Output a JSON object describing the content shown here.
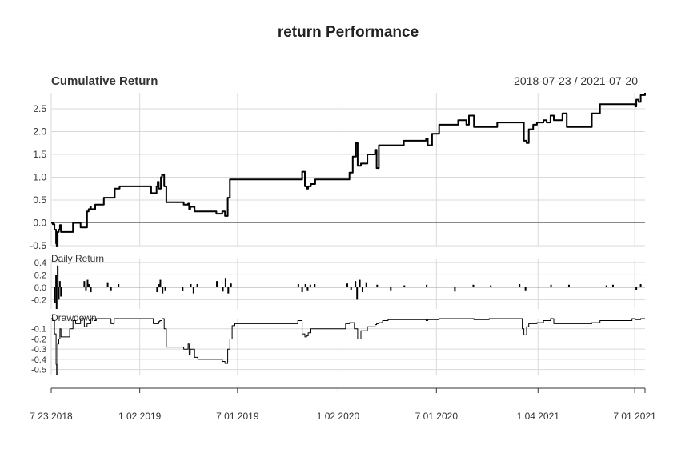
{
  "title": "return Performance",
  "date_range": "2018-07-23 / 2021-07-20",
  "chart_data": [
    {
      "type": "line",
      "title": "Cumulative Return",
      "ylim": [
        -0.5,
        2.85
      ],
      "y_ticks": [
        "2.5",
        "2.0",
        "1.5",
        "1.0",
        "0.5",
        "0.0",
        "-0.5"
      ],
      "y_tick_values": [
        2.5,
        2.0,
        1.5,
        1.0,
        0.5,
        0.0,
        -0.5
      ],
      "grid": true,
      "x": [
        "2018-07-23",
        "2018-07-26",
        "2018-07-29",
        "2018-08-01",
        "2018-08-02",
        "2018-08-04",
        "2018-08-06",
        "2018-08-08",
        "2018-08-10",
        "2018-08-14",
        "2018-08-18",
        "2018-08-22",
        "2018-09-01",
        "2018-09-15",
        "2018-09-27",
        "2018-09-30",
        "2018-10-03",
        "2018-10-04",
        "2018-10-06",
        "2018-10-12",
        "2018-10-18",
        "2018-10-28",
        "2018-11-04",
        "2018-11-17",
        "2018-11-26",
        "2018-12-02",
        "2018-12-16",
        "2019-01-06",
        "2019-01-23",
        "2019-02-02",
        "2019-02-04",
        "2019-02-06",
        "2019-02-10",
        "2019-02-12",
        "2019-02-16",
        "2019-02-20",
        "2019-03-19",
        "2019-03-24",
        "2019-04-01",
        "2019-04-03",
        "2019-04-05",
        "2019-04-13",
        "2019-04-19",
        "2019-05-03",
        "2019-05-23",
        "2019-06-03",
        "2019-06-08",
        "2019-06-13",
        "2019-06-17",
        "2019-06-21",
        "2019-07-11",
        "2019-08-16",
        "2019-09-24",
        "2019-10-20",
        "2019-10-28",
        "2019-11-02",
        "2019-11-05",
        "2019-11-08",
        "2019-11-13",
        "2019-11-21",
        "2019-12-01",
        "2019-12-17",
        "2020-01-06",
        "2020-01-16",
        "2020-01-23",
        "2020-01-29",
        "2020-02-04",
        "2020-02-07",
        "2020-02-13",
        "2020-02-25",
        "2020-03-10",
        "2020-03-13",
        "2020-03-17",
        "2020-03-24",
        "2020-04-03",
        "2020-05-02",
        "2020-05-18",
        "2020-06-12",
        "2020-06-15",
        "2020-06-23",
        "2020-07-06",
        "2020-08-03",
        "2020-08-10",
        "2020-08-25",
        "2020-08-30",
        "2020-09-08",
        "2020-10-06",
        "2020-10-21",
        "2020-11-15",
        "2020-12-06",
        "2020-12-09",
        "2020-12-14",
        "2020-12-18",
        "2020-12-26",
        "2021-01-02",
        "2021-01-14",
        "2021-01-20",
        "2021-01-27",
        "2021-02-02",
        "2021-02-18",
        "2021-02-26",
        "2021-03-20",
        "2021-03-30",
        "2021-04-13",
        "2021-04-28",
        "2021-05-08",
        "2021-06-01",
        "2021-06-26",
        "2021-07-02",
        "2021-07-04",
        "2021-07-08",
        "2021-07-12",
        "2021-07-20"
      ],
      "values": [
        0.0,
        -0.03,
        -0.15,
        -0.45,
        -0.5,
        -0.2,
        -0.15,
        -0.05,
        -0.2,
        -0.2,
        -0.2,
        -0.2,
        0.0,
        -0.1,
        0.25,
        0.3,
        0.35,
        0.3,
        0.3,
        0.4,
        0.4,
        0.55,
        0.55,
        0.75,
        0.8,
        0.8,
        0.8,
        0.8,
        0.65,
        0.8,
        0.9,
        0.75,
        1.0,
        1.05,
        0.8,
        0.45,
        0.45,
        0.4,
        0.42,
        0.3,
        0.35,
        0.25,
        0.25,
        0.25,
        0.2,
        0.25,
        0.15,
        0.55,
        0.95,
        0.95,
        0.95,
        0.95,
        0.95,
        0.95,
        1.12,
        0.8,
        0.75,
        0.8,
        0.85,
        0.95,
        0.95,
        0.95,
        0.95,
        0.95,
        1.1,
        1.45,
        1.75,
        1.25,
        1.3,
        1.5,
        1.6,
        1.2,
        1.7,
        1.7,
        1.7,
        1.8,
        1.8,
        1.85,
        1.7,
        1.95,
        2.15,
        2.15,
        2.25,
        2.15,
        2.35,
        2.1,
        2.1,
        2.2,
        2.2,
        2.2,
        1.8,
        1.75,
        2.05,
        2.15,
        2.2,
        2.25,
        2.2,
        2.35,
        2.25,
        2.4,
        2.1,
        2.1,
        2.1,
        2.4,
        2.6,
        2.6,
        2.6,
        2.6,
        2.55,
        2.7,
        2.65,
        2.8,
        2.85
      ]
    },
    {
      "type": "bar",
      "title": "Daily Return",
      "ylim": [
        -0.35,
        0.45
      ],
      "y_ticks": [
        "0.4",
        "0.2",
        "0.0",
        "-0.2"
      ],
      "y_tick_values": [
        0.4,
        0.2,
        0.0,
        -0.2
      ],
      "grid": true,
      "x": [
        "2018-07-30",
        "2018-08-01",
        "2018-08-02",
        "2018-08-04",
        "2018-08-06",
        "2018-08-08",
        "2018-08-10",
        "2018-09-22",
        "2018-09-25",
        "2018-09-28",
        "2018-10-01",
        "2018-10-04",
        "2018-11-04",
        "2018-11-10",
        "2018-11-24",
        "2019-02-03",
        "2019-02-06",
        "2019-02-09",
        "2019-02-13",
        "2019-02-18",
        "2019-03-22",
        "2019-04-06",
        "2019-04-11",
        "2019-04-18",
        "2019-05-24",
        "2019-06-04",
        "2019-06-09",
        "2019-06-14",
        "2019-06-19",
        "2019-10-21",
        "2019-10-28",
        "2019-11-03",
        "2019-11-07",
        "2019-11-12",
        "2019-11-20",
        "2020-01-19",
        "2020-01-26",
        "2020-02-03",
        "2020-02-06",
        "2020-02-11",
        "2020-02-16",
        "2020-02-23",
        "2020-03-14",
        "2020-04-08",
        "2020-05-03",
        "2020-06-13",
        "2020-08-04",
        "2020-09-07",
        "2020-10-09",
        "2020-12-01",
        "2020-12-12",
        "2021-01-28",
        "2021-03-02",
        "2021-05-10",
        "2021-05-22",
        "2021-07-04",
        "2021-07-12"
      ],
      "values": [
        -0.25,
        0.2,
        -0.35,
        0.35,
        -0.2,
        0.1,
        -0.15,
        0.1,
        -0.05,
        0.12,
        0.05,
        -0.08,
        0.08,
        -0.05,
        0.05,
        -0.08,
        0.05,
        0.12,
        -0.1,
        -0.05,
        -0.06,
        0.05,
        -0.1,
        0.05,
        0.1,
        -0.07,
        0.15,
        -0.1,
        0.06,
        0.05,
        -0.08,
        0.05,
        -0.05,
        0.04,
        0.05,
        0.06,
        -0.04,
        0.1,
        -0.2,
        0.12,
        -0.08,
        0.08,
        0.04,
        -0.05,
        0.03,
        0.04,
        -0.07,
        0.04,
        0.03,
        0.05,
        -0.05,
        0.04,
        0.04,
        0.03,
        0.04,
        -0.04,
        0.05
      ]
    },
    {
      "type": "area",
      "title": "Drawdown",
      "ylim": [
        -0.55,
        0.0
      ],
      "y_ticks": [
        "-0.1",
        "-0.2",
        "-0.3",
        "-0.4",
        "-0.5"
      ],
      "y_tick_values": [
        -0.1,
        -0.2,
        -0.3,
        -0.4,
        -0.5
      ],
      "grid": true,
      "x": [
        "2018-07-23",
        "2018-07-26",
        "2018-07-29",
        "2018-08-01",
        "2018-08-02",
        "2018-08-04",
        "2018-08-06",
        "2018-08-08",
        "2018-08-10",
        "2018-08-22",
        "2018-08-26",
        "2018-09-01",
        "2018-09-06",
        "2018-09-15",
        "2018-09-22",
        "2018-09-27",
        "2018-10-04",
        "2018-10-10",
        "2018-10-14",
        "2018-11-04",
        "2018-11-10",
        "2018-11-16",
        "2019-01-23",
        "2019-01-27",
        "2019-02-06",
        "2019-02-08",
        "2019-02-12",
        "2019-02-16",
        "2019-02-20",
        "2019-03-19",
        "2019-03-24",
        "2019-04-01",
        "2019-04-03",
        "2019-04-05",
        "2019-04-13",
        "2019-04-19",
        "2019-05-23",
        "2019-06-03",
        "2019-06-08",
        "2019-06-13",
        "2019-06-17",
        "2019-06-21",
        "2019-06-26",
        "2019-07-11",
        "2019-10-20",
        "2019-10-28",
        "2019-11-02",
        "2019-11-05",
        "2019-11-08",
        "2019-11-13",
        "2019-11-21",
        "2019-12-01",
        "2020-01-16",
        "2020-01-23",
        "2020-02-01",
        "2020-02-07",
        "2020-02-13",
        "2020-02-25",
        "2020-03-10",
        "2020-03-13",
        "2020-03-17",
        "2020-03-24",
        "2020-04-03",
        "2020-05-18",
        "2020-06-12",
        "2020-06-15",
        "2020-07-06",
        "2020-09-08",
        "2020-10-06",
        "2020-11-15",
        "2020-12-06",
        "2020-12-09",
        "2020-12-14",
        "2020-12-18",
        "2021-01-02",
        "2021-01-14",
        "2021-01-27",
        "2021-02-02",
        "2021-03-20",
        "2021-04-13",
        "2021-04-28",
        "2021-06-26",
        "2021-07-02",
        "2021-07-12",
        "2021-07-20"
      ],
      "values": [
        0.0,
        -0.02,
        -0.15,
        -0.45,
        -0.55,
        -0.25,
        -0.2,
        -0.1,
        -0.18,
        -0.18,
        -0.1,
        -0.02,
        -0.05,
        0.0,
        -0.08,
        -0.05,
        0.0,
        -0.02,
        0.0,
        0.0,
        -0.05,
        0.0,
        0.0,
        -0.05,
        -0.03,
        -0.02,
        0.0,
        -0.1,
        -0.28,
        -0.28,
        -0.3,
        -0.25,
        -0.35,
        -0.3,
        -0.38,
        -0.4,
        -0.4,
        -0.42,
        -0.44,
        -0.3,
        -0.2,
        -0.07,
        -0.05,
        -0.05,
        -0.02,
        -0.15,
        -0.18,
        -0.17,
        -0.14,
        -0.1,
        -0.1,
        -0.1,
        -0.05,
        -0.04,
        -0.1,
        -0.2,
        -0.12,
        -0.08,
        -0.06,
        -0.05,
        -0.04,
        -0.02,
        -0.01,
        -0.01,
        -0.02,
        -0.01,
        0.0,
        -0.01,
        0.0,
        0.0,
        -0.1,
        -0.16,
        -0.08,
        -0.05,
        -0.04,
        -0.02,
        0.0,
        -0.05,
        -0.05,
        -0.04,
        -0.02,
        0.0,
        -0.01,
        0.0,
        0.0
      ]
    }
  ],
  "x_axis": {
    "tick_labels": [
      "7 23 2018",
      "1 02 2019",
      "7 01 2019",
      "1 02 2020",
      "7 01 2020",
      "1 04 2021",
      "7 01 2021"
    ],
    "tick_dates": [
      "2018-07-23",
      "2019-01-02",
      "2019-07-01",
      "2020-01-02",
      "2020-07-01",
      "2021-01-04",
      "2021-07-01"
    ],
    "range": [
      "2018-07-23",
      "2021-07-20"
    ]
  }
}
